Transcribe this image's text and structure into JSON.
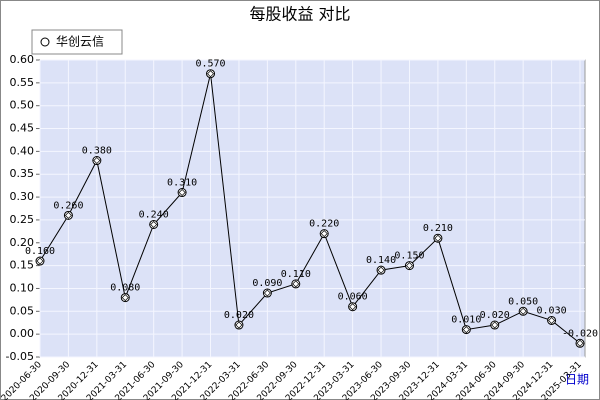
{
  "chart_data": {
    "type": "line",
    "title": "每股收益 对比",
    "x_label": "日期",
    "categories": [
      "2020-06-30",
      "2020-09-30",
      "2020-12-31",
      "2021-03-31",
      "2021-06-30",
      "2021-09-30",
      "2021-12-31",
      "2022-03-31",
      "2022-06-30",
      "2022-09-30",
      "2022-12-31",
      "2023-03-31",
      "2023-06-30",
      "2023-09-30",
      "2023-12-31",
      "2024-03-31",
      "2024-06-30",
      "2024-09-30",
      "2024-12-31",
      "2025-03-31"
    ],
    "series": [
      {
        "name": "华创云信",
        "color": "#000000",
        "values": [
          0.16,
          0.26,
          0.38,
          0.08,
          0.24,
          0.31,
          0.57,
          0.02,
          0.09,
          0.11,
          0.22,
          0.06,
          0.14,
          0.15,
          0.21,
          0.01,
          0.02,
          0.05,
          0.03,
          -0.02
        ],
        "value_labels": [
          "0.160",
          "0.260",
          "0.380",
          "0.080",
          "0.240",
          "0.310",
          "0.570",
          "0.020",
          "0.090",
          "0.110",
          "0.220",
          "0.060",
          "0.140",
          "0.150",
          "0.210",
          "0.010",
          "0.020",
          "0.050",
          "0.030",
          "-0.020"
        ]
      }
    ],
    "ylim": [
      -0.05,
      0.6
    ],
    "yticks": [
      -0.05,
      0.05,
      {
        "value": 0,
        "label": "0.00"
      },
      {
        "value": 0.1,
        "label": "0.10"
      },
      0.15,
      {
        "value": 0.2,
        "label": "0.20"
      },
      0.25,
      {
        "value": 0.3,
        "label": "0.30"
      },
      0.35,
      {
        "value": 0.4,
        "label": "0.40"
      },
      0.45,
      {
        "value": 0.5,
        "label": "0.50"
      },
      0.55,
      {
        "value": 0.6,
        "label": "0.60"
      }
    ],
    "grid": true,
    "legend": "top-left"
  }
}
